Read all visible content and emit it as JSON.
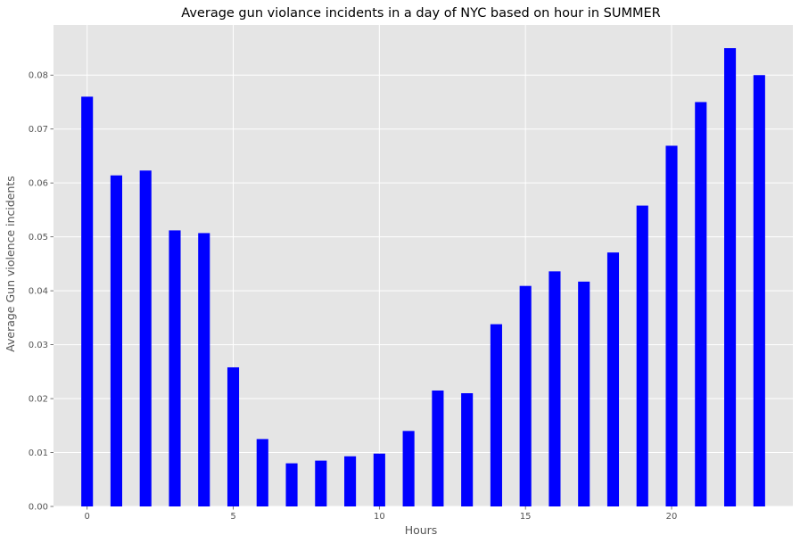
{
  "chart_data": {
    "type": "bar",
    "title": "Average gun violance incidents in a day of NYC based on hour in SUMMER",
    "xlabel": "Hours",
    "ylabel": "Average Gun violence incidents",
    "x": [
      0,
      1,
      2,
      3,
      4,
      5,
      6,
      7,
      8,
      9,
      10,
      11,
      12,
      13,
      14,
      15,
      16,
      17,
      18,
      19,
      20,
      21,
      22,
      23
    ],
    "values": [
      0.076,
      0.0614,
      0.0623,
      0.0512,
      0.0507,
      0.0258,
      0.0125,
      0.008,
      0.0085,
      0.0093,
      0.0098,
      0.014,
      0.0215,
      0.021,
      0.0338,
      0.0409,
      0.0436,
      0.0417,
      0.0471,
      0.0558,
      0.0669,
      0.075,
      0.085,
      0.08
    ],
    "xlim": [
      -1.15,
      24.15
    ],
    "ylim": [
      0,
      0.0893
    ],
    "xticks": [
      0,
      5,
      10,
      15,
      20
    ],
    "yticks": [
      0.0,
      0.01,
      0.02,
      0.03,
      0.04,
      0.05,
      0.06,
      0.07,
      0.08
    ],
    "xtick_labels": [
      "0",
      "5",
      "10",
      "15",
      "20"
    ],
    "ytick_labels": [
      "0.00",
      "0.01",
      "0.02",
      "0.03",
      "0.04",
      "0.05",
      "0.06",
      "0.07",
      "0.08"
    ],
    "bar_color": "#0000ff",
    "background_color": "#e5e5e5",
    "grid_color": "#ffffff",
    "grid": true
  }
}
